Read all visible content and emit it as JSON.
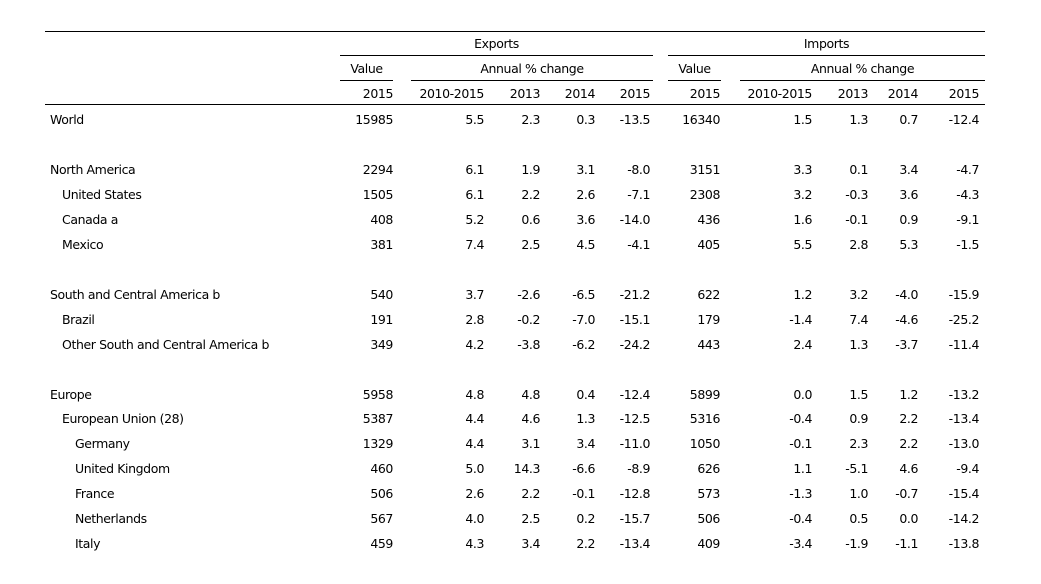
{
  "headers": {
    "exports": "Exports",
    "imports": "Imports",
    "value": "Value",
    "annual_change_exports": "Annual % change",
    "annual_change_imports": "Annual % change",
    "years": [
      "2015",
      "2010-2015",
      "2013",
      "2014",
      "2015",
      "2015",
      "2010-2015",
      "2013",
      "2014",
      "2015"
    ]
  },
  "rows": [
    {
      "label": "World",
      "cells": [
        "15985",
        "5.5",
        "2.3",
        "0.3",
        "-13.5",
        "16340",
        "1.5",
        "1.3",
        "0.7",
        "-12.4"
      ]
    },
    {
      "label": "North America",
      "cells": [
        "2294",
        "6.1",
        "1.9",
        "3.1",
        "-8.0",
        "3151",
        "3.3",
        "0.1",
        "3.4",
        "-4.7"
      ]
    },
    {
      "label": "United States",
      "cells": [
        "1505",
        "6.1",
        "2.2",
        "2.6",
        "-7.1",
        "2308",
        "3.2",
        "-0.3",
        "3.6",
        "-4.3"
      ]
    },
    {
      "label": "Canada  a",
      "cells": [
        "408",
        "5.2",
        "0.6",
        "3.6",
        "-14.0",
        "436",
        "1.6",
        "-0.1",
        "0.9",
        "-9.1"
      ]
    },
    {
      "label": "Mexico",
      "cells": [
        "381",
        "7.4",
        "2.5",
        "4.5",
        "-4.1",
        "405",
        "5.5",
        "2.8",
        "5.3",
        "-1.5"
      ]
    },
    {
      "label": "South and Central America  b",
      "cells": [
        "540",
        "3.7",
        "-2.6",
        "-6.5",
        "-21.2",
        "622",
        "1.2",
        "3.2",
        "-4.0",
        "-15.9"
      ]
    },
    {
      "label": "Brazil",
      "cells": [
        "191",
        "2.8",
        "-0.2",
        "-7.0",
        "-15.1",
        "179",
        "-1.4",
        "7.4",
        "-4.6",
        "-25.2"
      ]
    },
    {
      "label": "Other South and Central America  b",
      "cells": [
        "349",
        "4.2",
        "-3.8",
        "-6.2",
        "-24.2",
        "443",
        "2.4",
        "1.3",
        "-3.7",
        "-11.4"
      ]
    },
    {
      "label": "Europe",
      "cells": [
        "5958",
        "4.8",
        "4.8",
        "0.4",
        "-12.4",
        "5899",
        "0.0",
        "1.5",
        "1.2",
        "-13.2"
      ]
    },
    {
      "label": "European Union (28)",
      "cells": [
        "5387",
        "4.4",
        "4.6",
        "1.3",
        "-12.5",
        "5316",
        "-0.4",
        "0.9",
        "2.2",
        "-13.4"
      ]
    },
    {
      "label": "Germany",
      "cells": [
        "1329",
        "4.4",
        "3.1",
        "3.4",
        "-11.0",
        "1050",
        "-0.1",
        "2.3",
        "2.2",
        "-13.0"
      ]
    },
    {
      "label": "United Kingdom",
      "cells": [
        "460",
        "5.0",
        "14.3",
        "-6.6",
        "-8.9",
        "626",
        "1.1",
        "-5.1",
        "4.6",
        "-9.4"
      ]
    },
    {
      "label": "France",
      "cells": [
        "506",
        "2.6",
        "2.2",
        "-0.1",
        "-12.8",
        "573",
        "-1.3",
        "1.0",
        "-0.7",
        "-15.4"
      ]
    },
    {
      "label": "Netherlands",
      "cells": [
        "567",
        "4.0",
        "2.5",
        "0.2",
        "-15.7",
        "506",
        "-0.4",
        "0.5",
        "0.0",
        "-14.2"
      ]
    },
    {
      "label": "Italy",
      "cells": [
        "459",
        "4.3",
        "3.4",
        "2.2",
        "-13.4",
        "409",
        "-3.4",
        "-1.9",
        "-1.1",
        "-13.8"
      ]
    }
  ]
}
